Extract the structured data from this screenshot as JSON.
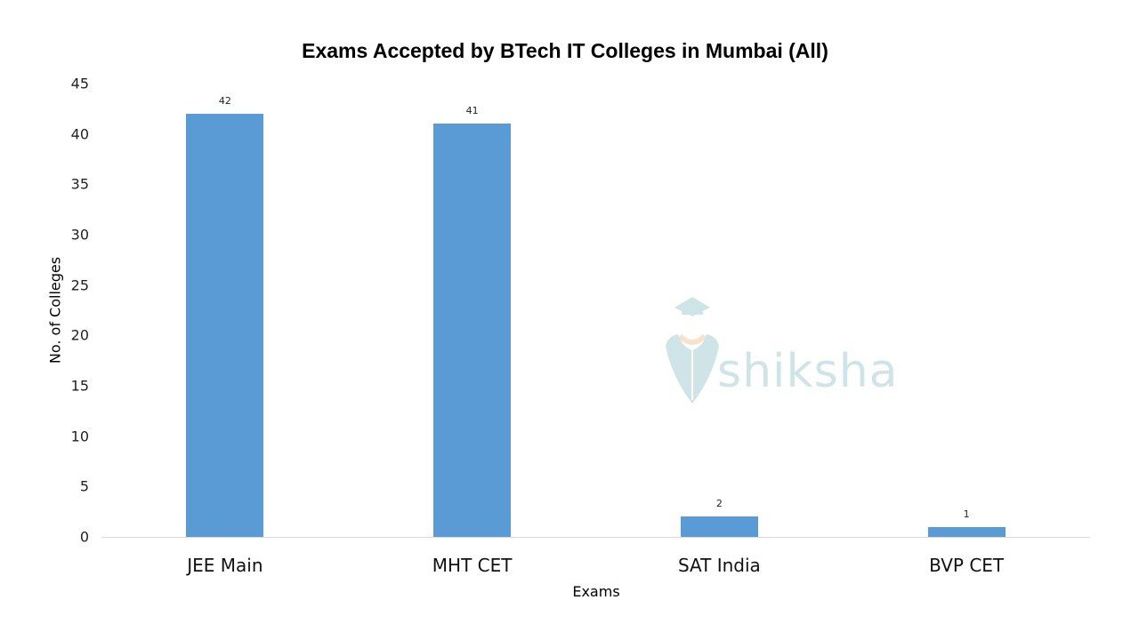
{
  "chart_data": {
    "type": "bar",
    "title": "Exams Accepted by BTech IT Colleges in Mumbai (All)",
    "xlabel": "Exams",
    "ylabel": "No. of Colleges",
    "categories": [
      "JEE Main",
      "MHT CET",
      "SAT India",
      "BVP CET"
    ],
    "values": [
      42,
      41,
      2,
      1
    ],
    "data_labels": [
      "42",
      "41",
      "2",
      "1"
    ],
    "ylim": [
      0,
      45
    ],
    "yticks": [
      "0",
      "5",
      "10",
      "15",
      "20",
      "25",
      "30",
      "35",
      "40",
      "45"
    ],
    "grid": false,
    "legend": null,
    "bar_color": "#5b9bd5"
  },
  "watermark": {
    "text": "shiksha",
    "icon": "graduate-cap-logo-icon"
  }
}
